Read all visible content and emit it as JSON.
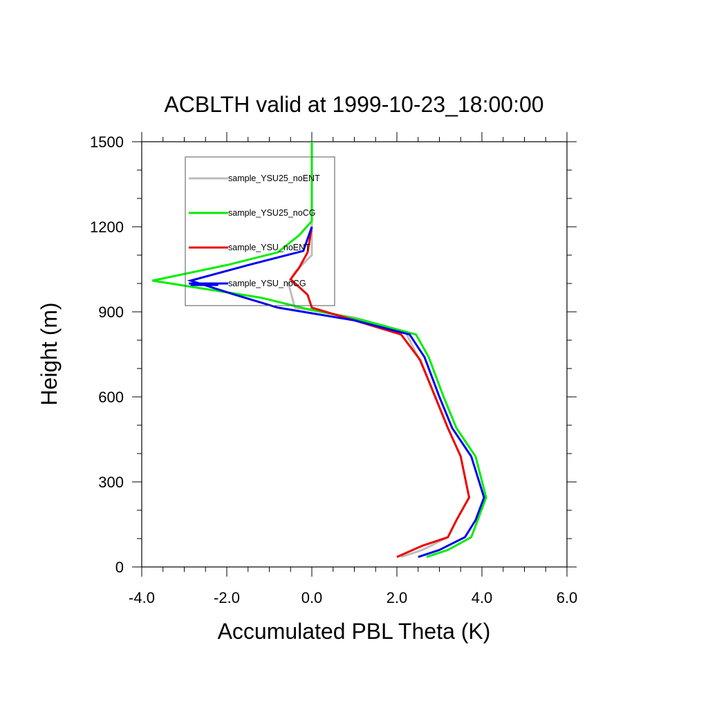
{
  "chart_data": {
    "type": "line",
    "title": "ACBLTH valid at 1999-10-23_18:00:00",
    "xlabel": "Accumulated PBL Theta (K)",
    "ylabel": "Height (m)",
    "xlim": [
      -4.0,
      6.0
    ],
    "ylim": [
      0,
      1500
    ],
    "x_ticks": [
      "-4.0",
      "-2.0",
      "0.0",
      "2.0",
      "4.0",
      "6.0"
    ],
    "y_ticks": [
      "0",
      "300",
      "600",
      "900",
      "1200",
      "1500"
    ],
    "grid": false,
    "legend_position": "top-left",
    "series": [
      {
        "name": "sample_YSU25_noENT",
        "color": "#bdbdbd",
        "points": [
          [
            2.1,
            35
          ],
          [
            2.6,
            60
          ],
          [
            3.2,
            105
          ],
          [
            3.4,
            165
          ],
          [
            3.7,
            245
          ],
          [
            3.5,
            390
          ],
          [
            3.2,
            490
          ],
          [
            2.8,
            640
          ],
          [
            2.5,
            740
          ],
          [
            2.2,
            830
          ],
          [
            1.0,
            880
          ],
          [
            0.0,
            905
          ],
          [
            -0.4,
            915
          ],
          [
            -0.55,
            1000
          ],
          [
            -0.4,
            1040
          ],
          [
            0.0,
            1100
          ],
          [
            0.0,
            1200
          ],
          [
            0.0,
            1300
          ],
          [
            0.0,
            1400
          ],
          [
            0.0,
            1500
          ]
        ]
      },
      {
        "name": "sample_YSU25_noCG",
        "color": "#00ee00",
        "points": [
          [
            2.7,
            35
          ],
          [
            3.2,
            60
          ],
          [
            3.75,
            105
          ],
          [
            3.9,
            165
          ],
          [
            4.1,
            245
          ],
          [
            3.85,
            390
          ],
          [
            3.4,
            490
          ],
          [
            3.1,
            600
          ],
          [
            2.75,
            740
          ],
          [
            2.45,
            820
          ],
          [
            1.2,
            870
          ],
          [
            -0.1,
            910
          ],
          [
            -1.2,
            950
          ],
          [
            -3.75,
            1010
          ],
          [
            -2.0,
            1065
          ],
          [
            -0.8,
            1110
          ],
          [
            -0.3,
            1170
          ],
          [
            0.0,
            1220
          ],
          [
            0.0,
            1300
          ],
          [
            0.0,
            1500
          ]
        ]
      },
      {
        "name": "sample_YSU_noENT",
        "color": "#ee0000",
        "points": [
          [
            2.0,
            35
          ],
          [
            2.6,
            75
          ],
          [
            3.2,
            105
          ],
          [
            3.4,
            165
          ],
          [
            3.7,
            245
          ],
          [
            3.5,
            390
          ],
          [
            3.2,
            490
          ],
          [
            2.9,
            600
          ],
          [
            2.55,
            730
          ],
          [
            2.1,
            820
          ],
          [
            1.0,
            870
          ],
          [
            0.0,
            915
          ],
          [
            -0.1,
            960
          ],
          [
            -0.5,
            1015
          ],
          [
            -0.3,
            1055
          ],
          [
            -0.1,
            1110
          ],
          [
            0.0,
            1200
          ]
        ]
      },
      {
        "name": "sample_YSU_noCG",
        "color": "#0000ee",
        "points": [
          [
            2.5,
            35
          ],
          [
            3.0,
            60
          ],
          [
            3.6,
            105
          ],
          [
            3.85,
            165
          ],
          [
            4.05,
            245
          ],
          [
            3.75,
            390
          ],
          [
            3.3,
            490
          ],
          [
            3.0,
            600
          ],
          [
            2.65,
            740
          ],
          [
            2.3,
            820
          ],
          [
            1.0,
            870
          ],
          [
            -0.8,
            915
          ],
          [
            -1.8,
            960
          ],
          [
            -2.85,
            1010
          ],
          [
            -1.5,
            1065
          ],
          [
            -0.2,
            1115
          ],
          [
            0.0,
            1200
          ]
        ]
      },
      {
        "name": "",
        "color": "#0000ee",
        "points": [
          [
            -2.85,
            995
          ],
          [
            -2.2,
            995
          ]
        ]
      }
    ]
  }
}
